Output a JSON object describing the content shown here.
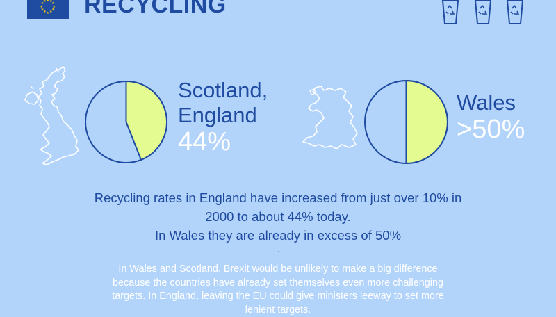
{
  "header": {
    "title": "RECYCLING"
  },
  "icons": {
    "flag": "eu-flag-icon",
    "bins": "recycling-bin-icon",
    "uk_map": "uk-map-icon",
    "wales_map": "wales-map-icon"
  },
  "colors": {
    "background": "#b3d4fa",
    "primary": "#1f4ba0",
    "pie_fill": "#e3fb90",
    "pie_base": "#b3d4fa",
    "text_light": "#ffffff"
  },
  "stats": [
    {
      "region": "Scotland, England",
      "region_lines": [
        "Scotland,",
        "England"
      ],
      "value_label": "44%",
      "rate": 0.44
    },
    {
      "region": "Wales",
      "region_lines": [
        "Wales"
      ],
      "value_label": ">50%",
      "rate": 0.5
    }
  ],
  "summary": {
    "line1": "Recycling rates in England have increased from just over 10% in",
    "line2": "2000 to about 44% today.",
    "line3": "In Wales they are already in excess of 50%"
  },
  "separator": ".",
  "note": {
    "line1": "In Wales and Scotland, Brexit would be unlikely to make a big difference",
    "line2": "because the countries have already set themselves even more challenging",
    "line3": "targets. In England, leaving the EU could give ministers leeway to set more",
    "line4": "lenient targets."
  }
}
